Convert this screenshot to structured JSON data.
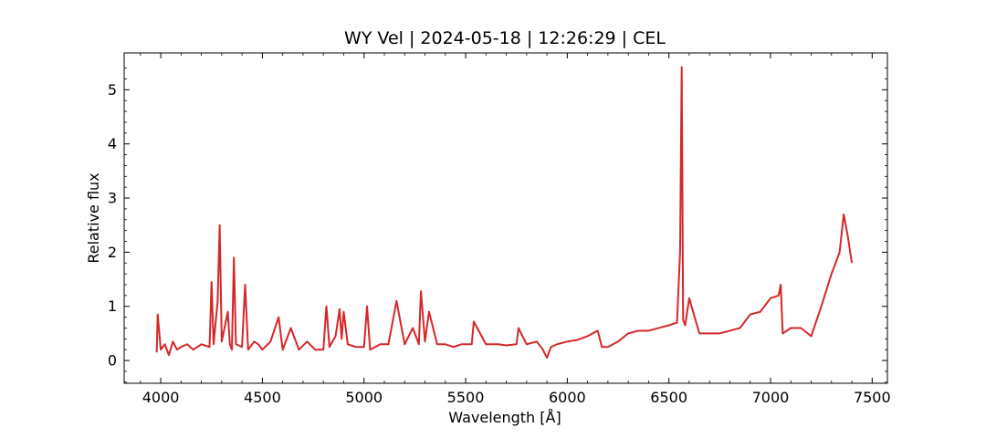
{
  "chart_data": {
    "type": "line",
    "title": "WY Vel | 2024-05-18 | 12:26:29 | CEL",
    "xlabel": "Wavelength [Å]",
    "ylabel": "Relative flux",
    "xlim": [
      3820,
      7575
    ],
    "ylim": [
      -0.42,
      5.68
    ],
    "xticks": [
      4000,
      4500,
      5000,
      5500,
      6000,
      6500,
      7000,
      7500
    ],
    "yticks": [
      0,
      1,
      2,
      3,
      4,
      5
    ],
    "grid": false,
    "legend": "none",
    "series": [
      {
        "color": "#d62728",
        "x": [
          3980,
          3985,
          4000,
          4020,
          4040,
          4060,
          4080,
          4100,
          4130,
          4160,
          4200,
          4240,
          4250,
          4260,
          4280,
          4290,
          4300,
          4330,
          4340,
          4350,
          4360,
          4370,
          4400,
          4415,
          4430,
          4460,
          4480,
          4500,
          4540,
          4580,
          4600,
          4640,
          4680,
          4720,
          4760,
          4800,
          4815,
          4830,
          4860,
          4880,
          4890,
          4900,
          4920,
          4960,
          5000,
          5015,
          5030,
          5080,
          5120,
          5160,
          5200,
          5240,
          5270,
          5280,
          5300,
          5320,
          5360,
          5400,
          5440,
          5480,
          5530,
          5540,
          5600,
          5660,
          5700,
          5750,
          5760,
          5800,
          5850,
          5880,
          5900,
          5920,
          5950,
          6000,
          6050,
          6100,
          6150,
          6170,
          6200,
          6250,
          6300,
          6350,
          6400,
          6450,
          6500,
          6540,
          6555,
          6563,
          6570,
          6580,
          6600,
          6650,
          6700,
          6750,
          6800,
          6850,
          6900,
          6950,
          7000,
          7040,
          7050,
          7060,
          7100,
          7150,
          7200,
          7250,
          7300,
          7340,
          7360,
          7380,
          7400
        ],
        "values": [
          0.15,
          0.85,
          0.2,
          0.3,
          0.1,
          0.35,
          0.2,
          0.25,
          0.3,
          0.2,
          0.3,
          0.25,
          1.45,
          0.3,
          1.1,
          2.5,
          0.35,
          0.9,
          0.3,
          0.2,
          1.9,
          0.3,
          0.25,
          1.4,
          0.2,
          0.35,
          0.3,
          0.2,
          0.35,
          0.8,
          0.2,
          0.6,
          0.2,
          0.35,
          0.2,
          0.2,
          1.0,
          0.25,
          0.45,
          0.95,
          0.4,
          0.9,
          0.3,
          0.25,
          0.25,
          1.0,
          0.2,
          0.3,
          0.3,
          1.1,
          0.3,
          0.6,
          0.3,
          1.28,
          0.35,
          0.9,
          0.3,
          0.3,
          0.25,
          0.3,
          0.3,
          0.72,
          0.3,
          0.3,
          0.28,
          0.3,
          0.6,
          0.3,
          0.35,
          0.2,
          0.05,
          0.25,
          0.3,
          0.35,
          0.38,
          0.45,
          0.55,
          0.25,
          0.25,
          0.35,
          0.5,
          0.55,
          0.55,
          0.6,
          0.65,
          0.7,
          2.0,
          5.42,
          0.75,
          0.65,
          1.15,
          0.5,
          0.5,
          0.5,
          0.55,
          0.6,
          0.85,
          0.9,
          1.15,
          1.2,
          1.4,
          0.5,
          0.6,
          0.6,
          0.45,
          1.0,
          1.6,
          2.0,
          2.7,
          2.3,
          1.8
        ]
      }
    ]
  }
}
